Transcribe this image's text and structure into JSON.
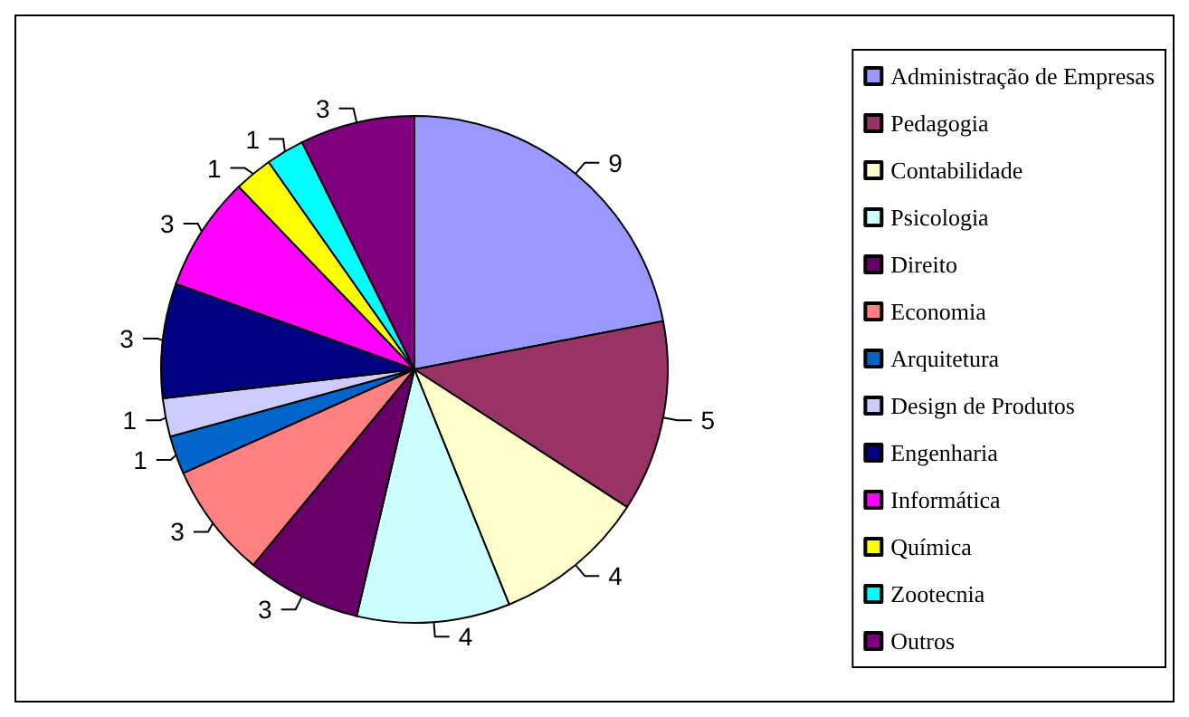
{
  "chart_data": {
    "type": "pie",
    "categories": [
      "Administração de Empresas",
      "Pedagogia",
      "Contabilidade",
      "Psicologia",
      "Direito",
      "Economia",
      "Arquitetura",
      "Design de Produtos",
      "Engenharia",
      "Informática",
      "Química",
      "Zootecnia",
      "Outros"
    ],
    "values": [
      9,
      5,
      4,
      4,
      3,
      3,
      1,
      1,
      3,
      3,
      1,
      1,
      3
    ],
    "colors": [
      "#9999ff",
      "#993366",
      "#ffffcc",
      "#ccffff",
      "#660066",
      "#ff8080",
      "#0066cc",
      "#ccccff",
      "#000080",
      "#ff00ff",
      "#ffff00",
      "#00ffff",
      "#800080"
    ],
    "data_labels": true,
    "legend": "right"
  }
}
